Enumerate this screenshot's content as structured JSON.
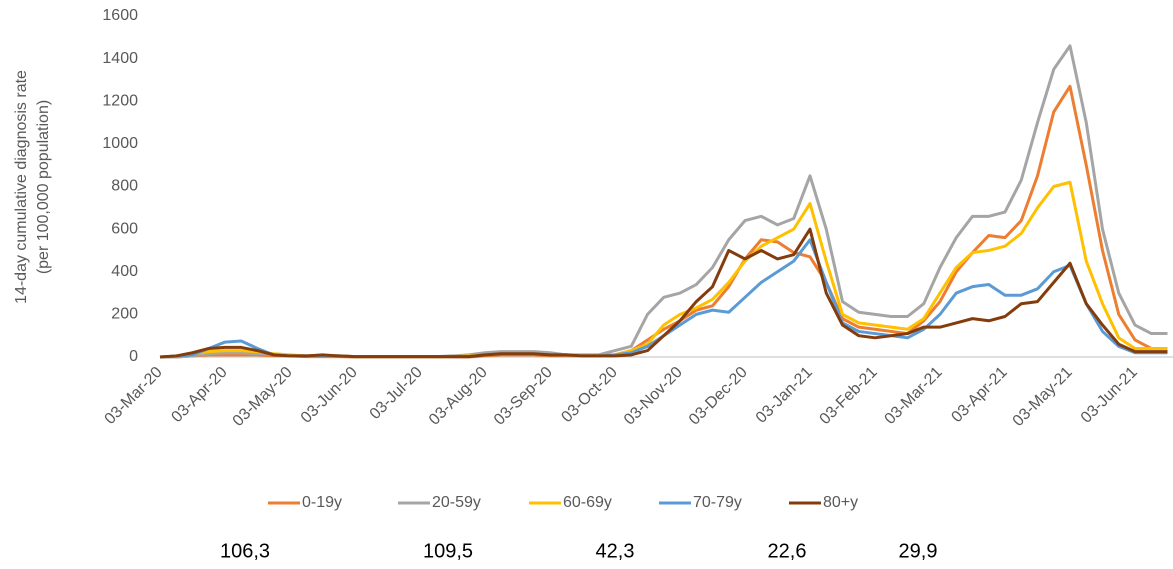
{
  "chart_data": {
    "type": "line",
    "y_label": [
      "14-day cumulative diagnosis rate",
      "(per 100,000 population)"
    ],
    "categories": [
      "03-Mar-20",
      null,
      null,
      null,
      "03-Apr-20",
      null,
      null,
      null,
      "03-May-20",
      null,
      null,
      null,
      "03-Jun-20",
      null,
      null,
      null,
      "03-Jul-20",
      null,
      null,
      null,
      "03-Aug-20",
      null,
      null,
      null,
      "03-Sep-20",
      null,
      null,
      null,
      "03-Oct-20",
      null,
      null,
      null,
      "03-Nov-20",
      null,
      null,
      null,
      "03-Dec-20",
      null,
      null,
      null,
      "03-Jan-21",
      null,
      null,
      null,
      "03-Feb-21",
      null,
      null,
      null,
      "03-Mar-21",
      null,
      null,
      null,
      "03-Apr-21",
      null,
      null,
      null,
      "03-May-21",
      null,
      null,
      null,
      "03-Jun-21",
      null,
      null
    ],
    "series": [
      {
        "name": "0-19y",
        "color": "#ed7d31",
        "values": [
          0,
          0,
          5,
          10,
          10,
          10,
          10,
          5,
          5,
          2,
          2,
          2,
          0,
          0,
          0,
          0,
          0,
          0,
          0,
          0,
          5,
          10,
          10,
          10,
          5,
          5,
          5,
          5,
          10,
          30,
          80,
          130,
          170,
          220,
          240,
          330,
          460,
          550,
          540,
          490,
          470,
          350,
          180,
          140,
          130,
          120,
          110,
          170,
          260,
          400,
          490,
          570,
          560,
          640,
          850,
          1150,
          1270,
          900,
          500,
          200,
          80,
          40,
          40
        ]
      },
      {
        "name": "20-59y",
        "color": "#a5a5a5",
        "values": [
          0,
          0,
          5,
          15,
          20,
          20,
          15,
          10,
          5,
          5,
          5,
          5,
          2,
          2,
          2,
          2,
          2,
          2,
          5,
          10,
          20,
          25,
          25,
          25,
          20,
          10,
          10,
          10,
          30,
          50,
          200,
          280,
          300,
          340,
          420,
          550,
          640,
          660,
          620,
          650,
          850,
          600,
          260,
          210,
          200,
          190,
          190,
          250,
          420,
          560,
          660,
          660,
          680,
          830,
          1100,
          1350,
          1460,
          1100,
          600,
          300,
          150,
          110,
          110
        ]
      },
      {
        "name": "60-69y",
        "color": "#ffc000",
        "values": [
          0,
          5,
          15,
          25,
          30,
          30,
          25,
          15,
          10,
          5,
          5,
          5,
          2,
          2,
          2,
          2,
          2,
          2,
          2,
          5,
          10,
          15,
          15,
          15,
          10,
          10,
          5,
          5,
          10,
          30,
          60,
          150,
          200,
          230,
          270,
          350,
          450,
          520,
          560,
          600,
          720,
          450,
          200,
          160,
          150,
          140,
          130,
          180,
          300,
          420,
          490,
          500,
          520,
          580,
          700,
          800,
          820,
          450,
          250,
          90,
          40,
          40,
          40
        ]
      },
      {
        "name": "70-79y",
        "color": "#5b9bd5",
        "values": [
          0,
          5,
          10,
          40,
          70,
          75,
          40,
          10,
          5,
          5,
          5,
          5,
          2,
          2,
          2,
          2,
          2,
          2,
          2,
          2,
          10,
          15,
          15,
          15,
          10,
          10,
          5,
          5,
          10,
          20,
          50,
          100,
          150,
          200,
          220,
          210,
          280,
          350,
          400,
          450,
          550,
          350,
          160,
          120,
          110,
          100,
          90,
          130,
          200,
          300,
          330,
          340,
          290,
          290,
          320,
          400,
          430,
          250,
          120,
          50,
          20,
          20,
          20
        ]
      },
      {
        "name": "80+y",
        "color": "#843c0c",
        "values": [
          0,
          5,
          20,
          40,
          45,
          45,
          30,
          10,
          5,
          5,
          10,
          5,
          2,
          2,
          2,
          2,
          2,
          2,
          2,
          2,
          10,
          15,
          15,
          15,
          10,
          10,
          5,
          5,
          5,
          10,
          30,
          100,
          170,
          260,
          330,
          500,
          460,
          500,
          460,
          480,
          600,
          300,
          150,
          100,
          90,
          100,
          110,
          140,
          140,
          160,
          180,
          170,
          190,
          250,
          260,
          350,
          440,
          250,
          150,
          60,
          25,
          25,
          25
        ]
      }
    ],
    "ylim": [
      0,
      1600
    ],
    "yticks": [
      0,
      200,
      400,
      600,
      800,
      1000,
      1200,
      1400,
      1600
    ],
    "grid": false,
    "legend": "bottom",
    "annotations": [
      "106,3",
      "109,5",
      "42,3",
      "22,6",
      "29,9"
    ]
  }
}
